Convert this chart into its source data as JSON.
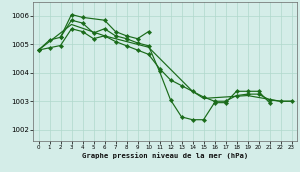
{
  "title": "Graphe pression niveau de la mer (hPa)",
  "bg_color": "#d4ede8",
  "grid_color": "#b0d8cc",
  "line_color": "#1a6b1a",
  "ylim": [
    1001.6,
    1006.5
  ],
  "yticks": [
    1002,
    1003,
    1004,
    1005,
    1006
  ],
  "xlim": [
    -0.5,
    23.5
  ],
  "xticks": [
    0,
    1,
    2,
    3,
    4,
    5,
    6,
    7,
    8,
    9,
    10,
    11,
    12,
    13,
    14,
    15,
    16,
    17,
    18,
    19,
    20,
    21,
    22,
    23
  ],
  "s1_x": [
    0,
    1,
    2,
    3,
    4,
    5,
    6,
    7,
    8,
    9,
    10,
    11,
    12,
    13,
    14,
    15,
    16,
    17,
    18,
    19,
    20,
    21
  ],
  "s1_y": [
    1004.8,
    1005.15,
    1005.25,
    1005.85,
    1005.75,
    1005.4,
    1005.55,
    1005.3,
    1005.2,
    1005.05,
    1004.95,
    1004.05,
    1003.05,
    1002.45,
    1002.35,
    1002.35,
    1002.95,
    1002.95,
    1003.35,
    1003.35,
    1003.35,
    1002.95
  ],
  "s2_x": [
    2,
    3,
    4,
    6,
    7,
    8,
    9,
    10
  ],
  "s2_y": [
    1005.25,
    1006.05,
    1005.95,
    1005.85,
    1005.45,
    1005.3,
    1005.2,
    1005.45
  ],
  "s3_x": [
    0,
    1,
    2,
    3,
    4,
    5,
    6,
    7,
    8,
    9,
    10,
    11,
    12,
    13,
    14,
    15,
    16,
    17,
    18,
    19,
    20,
    21,
    22,
    23
  ],
  "s3_y": [
    1004.8,
    1004.88,
    1004.96,
    1005.55,
    1005.45,
    1005.2,
    1005.3,
    1005.1,
    1004.95,
    1004.8,
    1004.65,
    1004.15,
    1003.75,
    1003.55,
    1003.35,
    1003.15,
    1003.0,
    1003.0,
    1003.2,
    1003.25,
    1003.25,
    1003.05,
    1003.0,
    1003.0
  ],
  "s4_x": [
    0,
    3,
    6,
    10,
    14,
    15,
    19,
    22,
    23
  ],
  "s4_y": [
    1004.8,
    1005.7,
    1005.3,
    1004.9,
    1003.35,
    1003.1,
    1003.2,
    1003.0,
    1003.0
  ]
}
